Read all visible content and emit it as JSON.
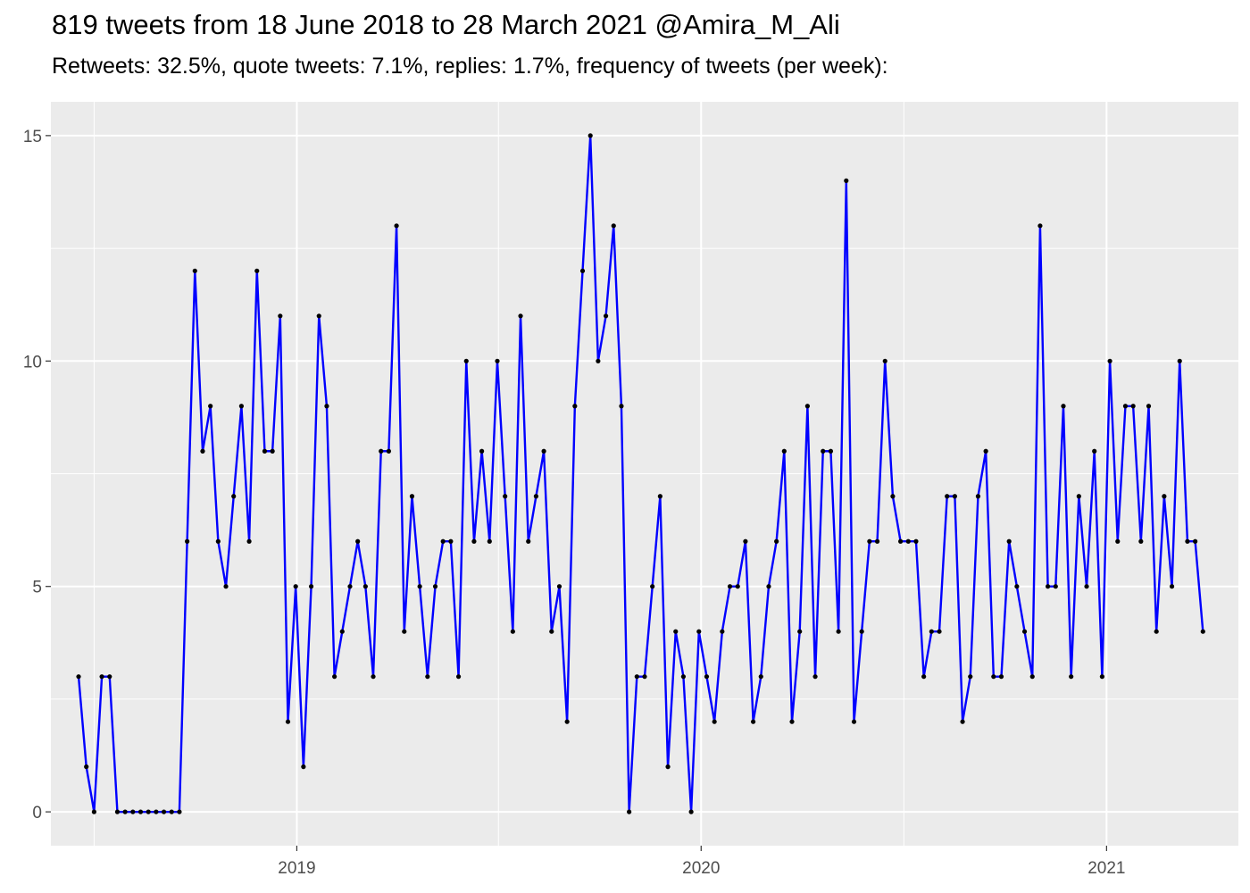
{
  "title": "819 tweets from 18 June 2018 to 28 March 2021 @Amira_M_Ali",
  "subtitle": "Retweets: 32.5%, quote tweets: 7.1%, replies: 1.7%, frequency of tweets (per week):",
  "chart_data": {
    "type": "line",
    "title": "819 tweets from 18 June 2018 to 28 March 2021 @Amira_M_Ali",
    "subtitle": "Retweets: 32.5%, quote tweets: 7.1%, replies: 1.7%, frequency of tweets (per week):",
    "xlabel": "",
    "ylabel": "",
    "x_tick_labels": [
      "2019",
      "2020",
      "2021"
    ],
    "y_tick_labels": [
      "0",
      "5",
      "10",
      "15"
    ],
    "y_ticks": [
      0,
      5,
      10,
      15
    ],
    "ylim": [
      -0.75,
      15.75
    ],
    "xlim": [
      "2018-05-24",
      "2021-04-30"
    ],
    "x_tick_dates": [
      "2019-01-01",
      "2020-01-01",
      "2021-01-01"
    ],
    "grid": true,
    "background": "#ebebeb",
    "line_color": "#0000ff",
    "point_color": "#000000",
    "series": [
      {
        "x": [
          "2018-06-18",
          "2018-06-25",
          "2018-07-02",
          "2018-07-09",
          "2018-07-16",
          "2018-07-23",
          "2018-07-30",
          "2018-08-06",
          "2018-08-13",
          "2018-08-20",
          "2018-08-27",
          "2018-09-03",
          "2018-09-10",
          "2018-09-17",
          "2018-09-24",
          "2018-10-01",
          "2018-10-08",
          "2018-10-15",
          "2018-10-22",
          "2018-10-29",
          "2018-11-05",
          "2018-11-12",
          "2018-11-19",
          "2018-11-26",
          "2018-12-03",
          "2018-12-10",
          "2018-12-17",
          "2018-12-24",
          "2018-12-31",
          "2019-01-07",
          "2019-01-14",
          "2019-01-21",
          "2019-01-28",
          "2019-02-04",
          "2019-02-11",
          "2019-02-18",
          "2019-02-25",
          "2019-03-04",
          "2019-03-11",
          "2019-03-18",
          "2019-03-25",
          "2019-04-01",
          "2019-04-08",
          "2019-04-15",
          "2019-04-22",
          "2019-04-29",
          "2019-05-06",
          "2019-05-13",
          "2019-05-20",
          "2019-05-27",
          "2019-06-03",
          "2019-06-10",
          "2019-06-17",
          "2019-06-24",
          "2019-07-01",
          "2019-07-08",
          "2019-07-15",
          "2019-07-22",
          "2019-07-29",
          "2019-08-05",
          "2019-08-12",
          "2019-08-19",
          "2019-08-26",
          "2019-09-02",
          "2019-09-09",
          "2019-09-16",
          "2019-09-23",
          "2019-09-30",
          "2019-10-07",
          "2019-10-14",
          "2019-10-21",
          "2019-10-28",
          "2019-11-04",
          "2019-11-11",
          "2019-11-18",
          "2019-11-25",
          "2019-12-02",
          "2019-12-09",
          "2019-12-16",
          "2019-12-23",
          "2019-12-30",
          "2020-01-06",
          "2020-01-13",
          "2020-01-20",
          "2020-01-27",
          "2020-02-03",
          "2020-02-10",
          "2020-02-17",
          "2020-02-24",
          "2020-03-02",
          "2020-03-09",
          "2020-03-16",
          "2020-03-23",
          "2020-03-30",
          "2020-04-06",
          "2020-04-13",
          "2020-04-20",
          "2020-04-27",
          "2020-05-04",
          "2020-05-11",
          "2020-05-18",
          "2020-05-25",
          "2020-06-01",
          "2020-06-08",
          "2020-06-15",
          "2020-06-22",
          "2020-06-29",
          "2020-07-06",
          "2020-07-13",
          "2020-07-20",
          "2020-07-27",
          "2020-08-03",
          "2020-08-10",
          "2020-08-17",
          "2020-08-24",
          "2020-08-31",
          "2020-09-07",
          "2020-09-14",
          "2020-09-21",
          "2020-09-28",
          "2020-10-05",
          "2020-10-12",
          "2020-10-19",
          "2020-10-26",
          "2020-11-02",
          "2020-11-09",
          "2020-11-16",
          "2020-11-23",
          "2020-11-30",
          "2020-12-07",
          "2020-12-14",
          "2020-12-21",
          "2020-12-28",
          "2021-01-04",
          "2021-01-11",
          "2021-01-18",
          "2021-01-25",
          "2021-02-01",
          "2021-02-08",
          "2021-02-15",
          "2021-02-22",
          "2021-03-01",
          "2021-03-08",
          "2021-03-15",
          "2021-03-22",
          "2021-03-29"
        ],
        "y": [
          3,
          1,
          0,
          3,
          3,
          0,
          0,
          0,
          0,
          0,
          0,
          0,
          0,
          0,
          6,
          12,
          8,
          9,
          6,
          5,
          7,
          9,
          6,
          12,
          8,
          8,
          11,
          2,
          5,
          1,
          5,
          11,
          9,
          3,
          4,
          5,
          6,
          5,
          3,
          8,
          8,
          13,
          4,
          7,
          5,
          3,
          5,
          6,
          6,
          3,
          10,
          6,
          8,
          6,
          10,
          7,
          4,
          11,
          6,
          7,
          8,
          4,
          5,
          2,
          9,
          12,
          15,
          10,
          11,
          13,
          9,
          0,
          3,
          3,
          5,
          7,
          1,
          4,
          3,
          0,
          4,
          3,
          2,
          4,
          5,
          5,
          6,
          2,
          3,
          5,
          6,
          8,
          2,
          4,
          9,
          3,
          8,
          8,
          4,
          14,
          2,
          4,
          6,
          6,
          10,
          7,
          6,
          6,
          6,
          3,
          4,
          4,
          7,
          7,
          2,
          3,
          7,
          8,
          3,
          3,
          6,
          5,
          4,
          3,
          13,
          5,
          5,
          9,
          3,
          7,
          5,
          8,
          3,
          10,
          6,
          9,
          9,
          6,
          9,
          4,
          7,
          5,
          10,
          6,
          6,
          4
        ]
      }
    ]
  }
}
